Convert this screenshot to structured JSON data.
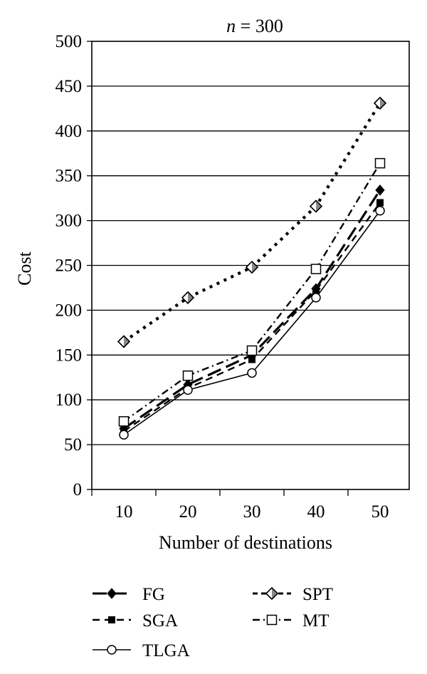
{
  "chart_data": {
    "type": "line",
    "title": "n = 300",
    "title_var": "n",
    "title_rest": " = 300",
    "xlabel": "Number of destinations",
    "ylabel": "Cost",
    "x": [
      10,
      20,
      30,
      40,
      50
    ],
    "x_tick_labels": [
      "10",
      "20",
      "30",
      "40",
      "50"
    ],
    "ylim": [
      0,
      500
    ],
    "y_tick_labels": [
      "0",
      "50",
      "100",
      "150",
      "200",
      "250",
      "300",
      "350",
      "400",
      "450",
      "500"
    ],
    "grid": "horizontal",
    "legend_position": "bottom",
    "series": [
      {
        "name": "FG",
        "marker": "diamond-filled",
        "dash": "long-dash",
        "values": [
          68,
          117,
          150,
          224,
          334
        ]
      },
      {
        "name": "SPT",
        "marker": "diamond-open",
        "dash": "dotted",
        "values": [
          165,
          214,
          248,
          316,
          431
        ]
      },
      {
        "name": "SGA",
        "marker": "square-filled",
        "dash": "dash",
        "values": [
          65,
          113,
          145,
          222,
          320
        ]
      },
      {
        "name": "MT",
        "marker": "square-open",
        "dash": "dash-dot",
        "values": [
          76,
          127,
          155,
          246,
          364
        ]
      },
      {
        "name": "TLGA",
        "marker": "circle-open",
        "dash": "solid",
        "values": [
          61,
          111,
          130,
          214,
          311
        ]
      }
    ]
  }
}
